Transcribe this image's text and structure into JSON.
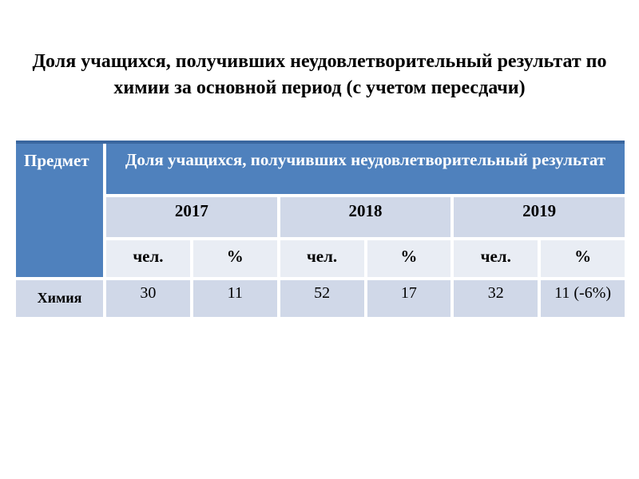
{
  "title": {
    "line1": "Доля учащихся, получивших неудовлетворительный результат по",
    "line2": "химии за основной период (с учетом пересдачи)"
  },
  "table": {
    "subject_col_header": "Предмет",
    "main_header": "Доля учащихся, получивших неудовлетворительный результат",
    "years": [
      "2017",
      "2018",
      "2019"
    ],
    "sub_headers": [
      "чел.",
      "%",
      "чел.",
      "%",
      "чел.",
      "%"
    ],
    "row": {
      "subject": "Химия",
      "values": [
        "30",
        "11",
        "52",
        "17",
        "32",
        "11 (-6%)"
      ]
    }
  },
  "colors": {
    "header_bg": "#4f81bd",
    "header_text": "#ffffff",
    "band_dark": "#d0d8e8",
    "band_light": "#e9edf4",
    "table_top_border": "#3a669f",
    "body_text": "#000000",
    "background": "#ffffff"
  }
}
